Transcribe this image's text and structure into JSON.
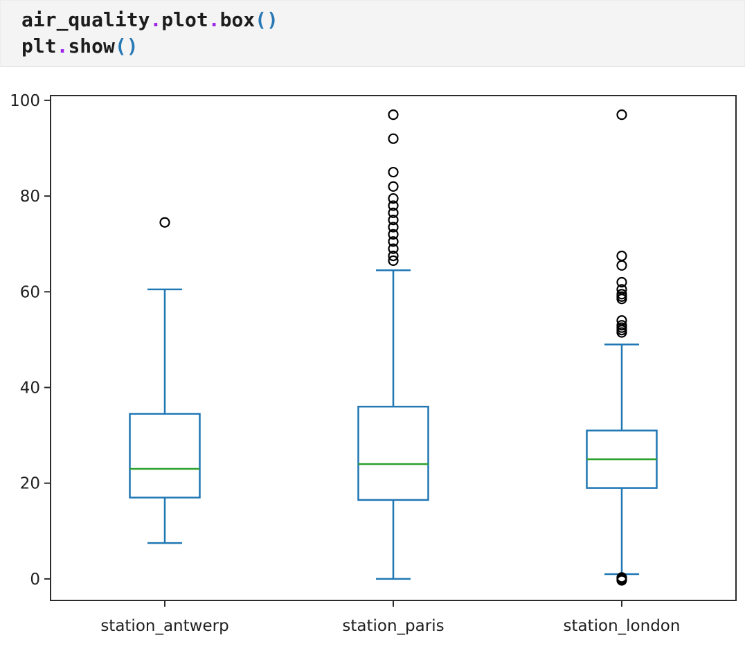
{
  "code_cell": {
    "language": "python",
    "lines": [
      [
        [
          "air_quality",
          "name"
        ],
        [
          ".",
          "op"
        ],
        [
          "plot",
          "name"
        ],
        [
          ".",
          "op"
        ],
        [
          "box",
          "name"
        ],
        [
          "(",
          "paren"
        ],
        [
          ")",
          "paren"
        ]
      ],
      [
        [
          "plt",
          "name"
        ],
        [
          ".",
          "op"
        ],
        [
          "show",
          "name"
        ],
        [
          "(",
          "paren"
        ],
        [
          ")",
          "paren"
        ]
      ]
    ]
  },
  "chart_data": {
    "type": "box",
    "title": "",
    "xlabel": "",
    "ylabel": "",
    "grid": false,
    "legend": "none",
    "categories": [
      "station_antwerp",
      "station_paris",
      "station_london"
    ],
    "yticks": [
      0,
      20,
      40,
      60,
      80,
      100
    ],
    "ylim": [
      -4.5,
      101
    ],
    "boxes": [
      {
        "label": "station_antwerp",
        "whisker_low": 7.5,
        "q1": 17,
        "median": 23,
        "q3": 34.5,
        "whisker_high": 60.5,
        "outliers": [
          74.5
        ]
      },
      {
        "label": "station_paris",
        "whisker_low": 0,
        "q1": 16.5,
        "median": 24,
        "q3": 36,
        "whisker_high": 64.5,
        "outliers": [
          66.5,
          67.5,
          69,
          70.5,
          72,
          73.5,
          75,
          76.5,
          78,
          79.5,
          82,
          85,
          92,
          97
        ]
      },
      {
        "label": "station_london",
        "whisker_low": 1,
        "q1": 19,
        "median": 25,
        "q3": 31,
        "whisker_high": 49,
        "outliers": [
          -0.3,
          0,
          0.3,
          51.5,
          52,
          52.5,
          53,
          54,
          58.5,
          59,
          59.5,
          60.5,
          62,
          65.5,
          67.5,
          97
        ]
      }
    ],
    "colors": {
      "box": "#1f77b4",
      "median": "#2ca02c",
      "outlier": "#000000",
      "spine": "#2b2b2b",
      "tick_label": "#1f1f1f"
    }
  }
}
